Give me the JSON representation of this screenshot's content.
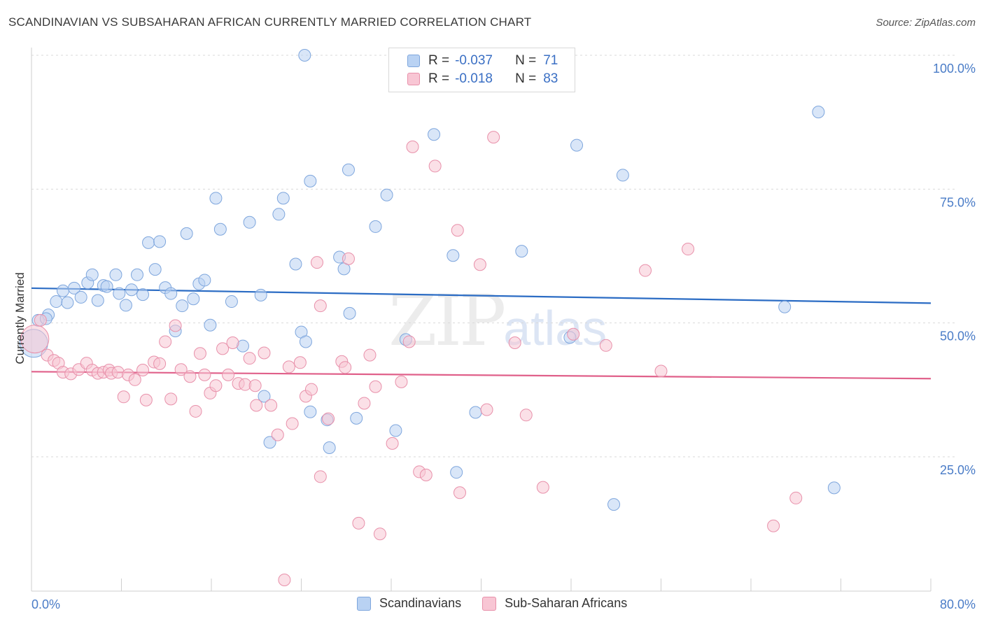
{
  "header": {
    "title": "SCANDINAVIAN VS SUBSAHARAN AFRICAN CURRENTLY MARRIED CORRELATION CHART",
    "source": "Source: ZipAtlas.com"
  },
  "watermark": {
    "zip": "ZIP",
    "atlas": "atlas"
  },
  "legend": {
    "r_label": "R =",
    "n_label": "N =",
    "series": [
      {
        "r": "-0.037",
        "n": "71",
        "fill": "#b9d2f3",
        "stroke": "#7ea6dd"
      },
      {
        "r": "-0.018",
        "n": "83",
        "fill": "#f8c6d4",
        "stroke": "#e890aa"
      }
    ]
  },
  "bottom_legend": {
    "items": [
      {
        "label": "Scandinavians",
        "fill": "#b9d2f3",
        "stroke": "#7ea6dd"
      },
      {
        "label": "Sub-Saharan Africans",
        "fill": "#f8c6d4",
        "stroke": "#e890aa"
      }
    ]
  },
  "chart_data": {
    "type": "scatter",
    "ylabel": "Currently Married",
    "xlim": [
      0,
      80
    ],
    "ylim": [
      0,
      105
    ],
    "x_tick_labels": [
      "0.0%",
      "80.0%"
    ],
    "y_ticks": [
      25,
      50,
      75,
      100
    ],
    "y_tick_labels": [
      "25.0%",
      "50.0%",
      "75.0%",
      "100.0%"
    ],
    "grid": "horizontal dashed",
    "series": [
      {
        "name": "Scandinavians",
        "color": "#7ea6dd",
        "fill": "#b9d2f3",
        "line_color": "#2b6cc4",
        "trend": {
          "x0": 0,
          "y0": 56.5,
          "x1": 80,
          "y1": 53.7
        },
        "points": [
          [
            0.2,
            46.2
          ],
          [
            0.6,
            50.5
          ],
          [
            1.5,
            51.5
          ],
          [
            1.3,
            50.8
          ],
          [
            2.2,
            54.0
          ],
          [
            2.8,
            56.0
          ],
          [
            3.2,
            53.8
          ],
          [
            3.8,
            56.5
          ],
          [
            4.4,
            54.8
          ],
          [
            5.0,
            57.5
          ],
          [
            5.4,
            59.0
          ],
          [
            5.9,
            54.2
          ],
          [
            6.4,
            57.0
          ],
          [
            6.7,
            56.8
          ],
          [
            7.5,
            59.0
          ],
          [
            7.8,
            55.5
          ],
          [
            8.4,
            53.3
          ],
          [
            8.9,
            56.2
          ],
          [
            9.4,
            59.0
          ],
          [
            9.9,
            55.3
          ],
          [
            10.4,
            65.0
          ],
          [
            11.0,
            60.0
          ],
          [
            11.4,
            65.2
          ],
          [
            11.9,
            56.6
          ],
          [
            12.4,
            55.5
          ],
          [
            12.8,
            48.5
          ],
          [
            13.4,
            53.2
          ],
          [
            13.8,
            66.7
          ],
          [
            14.4,
            54.5
          ],
          [
            14.9,
            57.3
          ],
          [
            15.4,
            58.0
          ],
          [
            15.9,
            49.6
          ],
          [
            16.4,
            73.3
          ],
          [
            16.8,
            67.5
          ],
          [
            17.8,
            54.0
          ],
          [
            18.8,
            45.7
          ],
          [
            19.4,
            68.8
          ],
          [
            20.4,
            55.2
          ],
          [
            20.7,
            36.3
          ],
          [
            21.2,
            27.7
          ],
          [
            22.0,
            70.3
          ],
          [
            22.4,
            73.3
          ],
          [
            23.5,
            61.0
          ],
          [
            24.0,
            48.3
          ],
          [
            24.4,
            46.5
          ],
          [
            24.3,
            100.0
          ],
          [
            24.8,
            76.5
          ],
          [
            24.8,
            33.4
          ],
          [
            26.3,
            31.9
          ],
          [
            26.5,
            26.7
          ],
          [
            27.4,
            62.3
          ],
          [
            27.8,
            60.1
          ],
          [
            28.2,
            78.6
          ],
          [
            28.3,
            51.8
          ],
          [
            28.9,
            32.2
          ],
          [
            30.6,
            68.0
          ],
          [
            31.6,
            73.9
          ],
          [
            32.4,
            29.9
          ],
          [
            33.3,
            46.9
          ],
          [
            35.8,
            85.2
          ],
          [
            37.5,
            62.6
          ],
          [
            37.8,
            22.1
          ],
          [
            39.5,
            33.3
          ],
          [
            43.6,
            63.4
          ],
          [
            47.9,
            47.3
          ],
          [
            48.5,
            83.2
          ],
          [
            51.8,
            16.1
          ],
          [
            52.6,
            77.6
          ],
          [
            67.0,
            53.0
          ],
          [
            70.0,
            89.4
          ],
          [
            71.4,
            19.2
          ]
        ]
      },
      {
        "name": "Sub-Saharan Africans",
        "color": "#e890aa",
        "fill": "#f8c6d4",
        "line_color": "#e0608a",
        "trend": {
          "x0": 0,
          "y0": 40.9,
          "x1": 80,
          "y1": 39.6
        },
        "points": [
          [
            0.3,
            47.0
          ],
          [
            0.8,
            50.5
          ],
          [
            1.4,
            44.0
          ],
          [
            2.0,
            43.0
          ],
          [
            2.4,
            42.5
          ],
          [
            2.8,
            40.8
          ],
          [
            3.5,
            40.5
          ],
          [
            4.2,
            41.3
          ],
          [
            4.9,
            42.5
          ],
          [
            5.4,
            41.2
          ],
          [
            5.9,
            40.6
          ],
          [
            6.4,
            40.8
          ],
          [
            6.9,
            41.2
          ],
          [
            7.1,
            40.6
          ],
          [
            7.7,
            40.8
          ],
          [
            8.2,
            36.2
          ],
          [
            8.6,
            40.3
          ],
          [
            9.2,
            39.4
          ],
          [
            9.9,
            41.2
          ],
          [
            10.2,
            35.6
          ],
          [
            10.9,
            42.7
          ],
          [
            11.4,
            42.4
          ],
          [
            11.9,
            46.5
          ],
          [
            12.4,
            35.8
          ],
          [
            12.8,
            49.5
          ],
          [
            13.3,
            41.3
          ],
          [
            14.1,
            40.0
          ],
          [
            14.6,
            33.5
          ],
          [
            15.0,
            44.3
          ],
          [
            15.4,
            40.3
          ],
          [
            15.9,
            36.9
          ],
          [
            16.4,
            38.3
          ],
          [
            17.0,
            45.2
          ],
          [
            17.5,
            40.3
          ],
          [
            17.9,
            46.3
          ],
          [
            18.4,
            38.7
          ],
          [
            19.0,
            38.5
          ],
          [
            19.4,
            43.4
          ],
          [
            19.9,
            38.3
          ],
          [
            20.0,
            34.6
          ],
          [
            20.7,
            44.4
          ],
          [
            21.3,
            34.6
          ],
          [
            21.9,
            29.1
          ],
          [
            22.5,
            2.0
          ],
          [
            22.9,
            41.8
          ],
          [
            23.2,
            31.2
          ],
          [
            23.9,
            42.6
          ],
          [
            24.4,
            36.3
          ],
          [
            24.9,
            37.6
          ],
          [
            25.4,
            61.3
          ],
          [
            25.7,
            21.3
          ],
          [
            26.4,
            32.1
          ],
          [
            27.6,
            42.8
          ],
          [
            27.9,
            41.7
          ],
          [
            28.2,
            62.0
          ],
          [
            29.1,
            12.6
          ],
          [
            29.6,
            35.0
          ],
          [
            30.1,
            44.0
          ],
          [
            30.6,
            38.1
          ],
          [
            31.0,
            10.6
          ],
          [
            32.1,
            27.5
          ],
          [
            32.9,
            39.0
          ],
          [
            33.6,
            46.5
          ],
          [
            33.9,
            82.9
          ],
          [
            34.5,
            22.2
          ],
          [
            35.1,
            21.6
          ],
          [
            35.9,
            79.3
          ],
          [
            37.9,
            67.3
          ],
          [
            38.1,
            18.3
          ],
          [
            39.9,
            60.9
          ],
          [
            40.5,
            33.8
          ],
          [
            41.1,
            84.7
          ],
          [
            43.0,
            46.3
          ],
          [
            44.0,
            32.8
          ],
          [
            45.5,
            19.3
          ],
          [
            48.2,
            47.9
          ],
          [
            51.1,
            45.8
          ],
          [
            54.6,
            59.8
          ],
          [
            56.0,
            41.0
          ],
          [
            58.4,
            63.8
          ],
          [
            66.0,
            12.1
          ],
          [
            68.0,
            17.3
          ],
          [
            25.7,
            53.2
          ]
        ]
      }
    ]
  }
}
